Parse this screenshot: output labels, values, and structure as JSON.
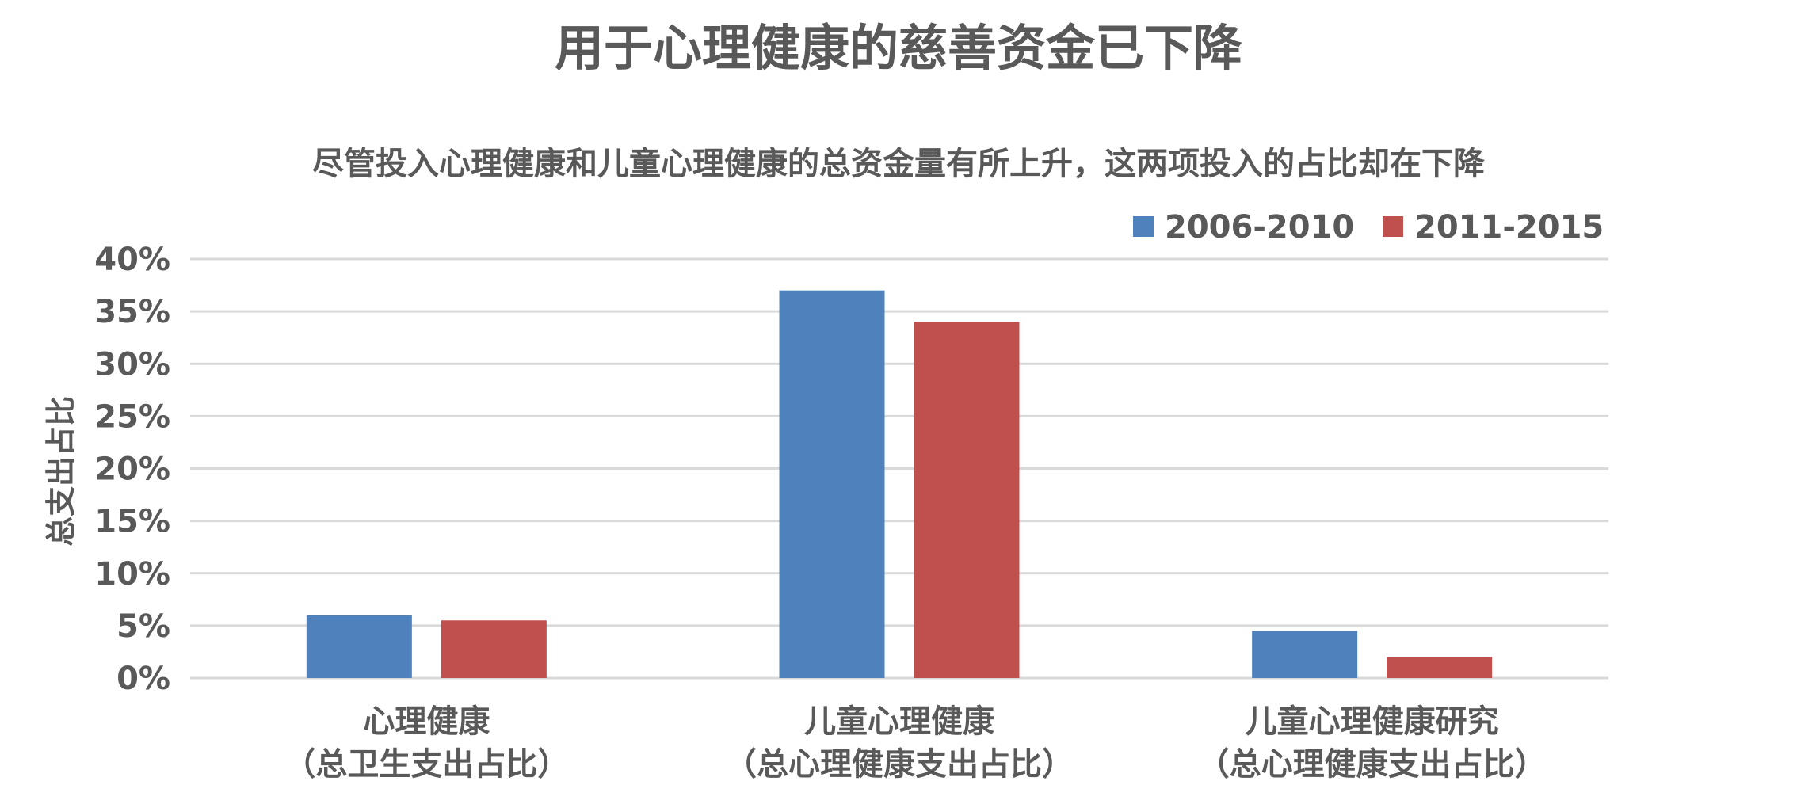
{
  "chart_data": {
    "type": "bar",
    "title": "用于心理健康的慈善资金已下降",
    "subtitle": "尽管投入心理健康和儿童心理健康的总资金量有所上升，这两项投入的占比却在下降",
    "ylabel": "总支出占比",
    "xlabel": "",
    "ylim": [
      0,
      40
    ],
    "yticks": [
      "0%",
      "5%",
      "10%",
      "15%",
      "20%",
      "25%",
      "30%",
      "35%",
      "40%"
    ],
    "grid": true,
    "legend_position": "top-right",
    "categories": [
      [
        "心理健康",
        "（总卫生支出占比）"
      ],
      [
        "儿童心理健康",
        "（总心理健康支出占比）"
      ],
      [
        "儿童心理健康研究",
        "（总心理健康支出占比）"
      ]
    ],
    "series": [
      {
        "name": "2006-2010",
        "color": "#4F81BD",
        "values": [
          6,
          37,
          4.5
        ]
      },
      {
        "name": "2011-2015",
        "color": "#C0504D",
        "values": [
          5.5,
          34,
          2
        ]
      }
    ]
  }
}
